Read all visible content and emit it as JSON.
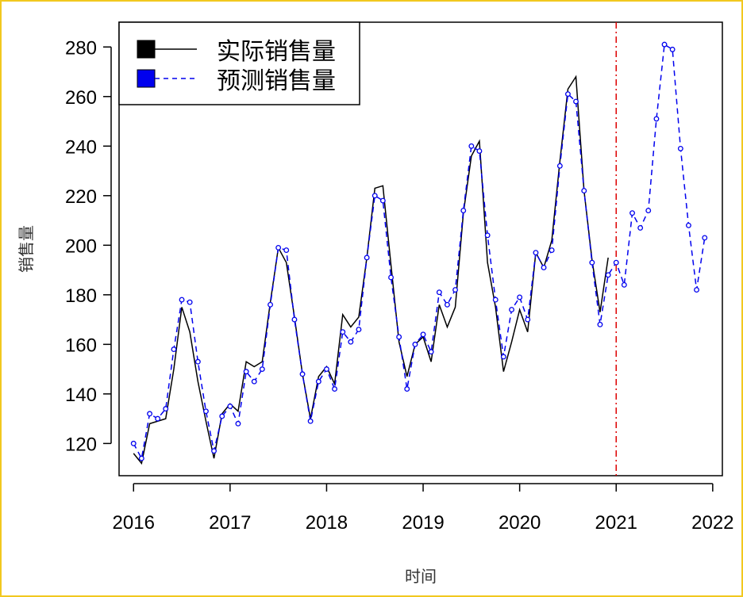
{
  "chart_data": {
    "type": "line",
    "title": "",
    "xlabel": "时间",
    "ylabel": "销售量",
    "xlim": [
      2015.85,
      2022.1
    ],
    "ylim": [
      107,
      290
    ],
    "grid": false,
    "legend_position": "top-left",
    "x_ticks": [
      2016,
      2017,
      2018,
      2019,
      2020,
      2021,
      2022
    ],
    "x_tick_labels": [
      "2016",
      "2017",
      "2018",
      "2019",
      "2020",
      "2021",
      "2022"
    ],
    "y_ticks": [
      120,
      140,
      160,
      180,
      200,
      220,
      240,
      260,
      280
    ],
    "y_tick_labels": [
      "120",
      "140",
      "160",
      "180",
      "200",
      "220",
      "240",
      "260",
      "280"
    ],
    "vline": {
      "x": 2021.0,
      "color": "#dd0000",
      "style": "dash-dot"
    },
    "series": [
      {
        "name": "实际销售量",
        "color": "#000000",
        "line_style": "solid",
        "x": [
          2016.0,
          2016.083,
          2016.167,
          2016.25,
          2016.333,
          2016.417,
          2016.5,
          2016.583,
          2016.667,
          2016.75,
          2016.833,
          2016.917,
          2017.0,
          2017.083,
          2017.167,
          2017.25,
          2017.333,
          2017.417,
          2017.5,
          2017.583,
          2017.667,
          2017.75,
          2017.833,
          2017.917,
          2018.0,
          2018.083,
          2018.167,
          2018.25,
          2018.333,
          2018.417,
          2018.5,
          2018.583,
          2018.667,
          2018.75,
          2018.833,
          2018.917,
          2019.0,
          2019.083,
          2019.167,
          2019.25,
          2019.333,
          2019.417,
          2019.5,
          2019.583,
          2019.667,
          2019.75,
          2019.833,
          2019.917,
          2020.0,
          2020.083,
          2020.167,
          2020.25,
          2020.333,
          2020.417,
          2020.5,
          2020.583,
          2020.667,
          2020.75,
          2020.833,
          2020.917
        ],
        "values": [
          116,
          112,
          128,
          129,
          130,
          150,
          175,
          165,
          145,
          129,
          114,
          132,
          136,
          133,
          153,
          151,
          153,
          177,
          199,
          193,
          171,
          148,
          130,
          147,
          151,
          144,
          172,
          167,
          171,
          195,
          223,
          224,
          192,
          161,
          147,
          160,
          163,
          153,
          176,
          167,
          175,
          213,
          236,
          242,
          193,
          175,
          149,
          161,
          174,
          165,
          197,
          191,
          202,
          234,
          263,
          268,
          222,
          194,
          173,
          195
        ]
      },
      {
        "name": "预测销售量",
        "color": "#0000ee",
        "line_style": "dashed",
        "marker": "circle",
        "x": [
          2016.0,
          2016.083,
          2016.167,
          2016.25,
          2016.333,
          2016.417,
          2016.5,
          2016.583,
          2016.667,
          2016.75,
          2016.833,
          2016.917,
          2017.0,
          2017.083,
          2017.167,
          2017.25,
          2017.333,
          2017.417,
          2017.5,
          2017.583,
          2017.667,
          2017.75,
          2017.833,
          2017.917,
          2018.0,
          2018.083,
          2018.167,
          2018.25,
          2018.333,
          2018.417,
          2018.5,
          2018.583,
          2018.667,
          2018.75,
          2018.833,
          2018.917,
          2019.0,
          2019.083,
          2019.167,
          2019.25,
          2019.333,
          2019.417,
          2019.5,
          2019.583,
          2019.667,
          2019.75,
          2019.833,
          2019.917,
          2020.0,
          2020.083,
          2020.167,
          2020.25,
          2020.333,
          2020.417,
          2020.5,
          2020.583,
          2020.667,
          2020.75,
          2020.833,
          2020.917,
          2021.0,
          2021.083,
          2021.167,
          2021.25,
          2021.333,
          2021.417,
          2021.5,
          2021.583,
          2021.667,
          2021.75,
          2021.833,
          2021.917
        ],
        "values": [
          120,
          114,
          132,
          130,
          134,
          158,
          178,
          177,
          153,
          133,
          117,
          131,
          135,
          128,
          149,
          145,
          150,
          176,
          199,
          198,
          170,
          148,
          129,
          145,
          150,
          142,
          165,
          161,
          166,
          195,
          220,
          218,
          187,
          163,
          142,
          160,
          164,
          157,
          181,
          176,
          182,
          214,
          240,
          238,
          204,
          178,
          155,
          174,
          179,
          170,
          197,
          191,
          198,
          232,
          261,
          258,
          222,
          193,
          168,
          188,
          193,
          184,
          213,
          207,
          214,
          251,
          281,
          279,
          239,
          208,
          182,
          203
        ]
      }
    ]
  }
}
